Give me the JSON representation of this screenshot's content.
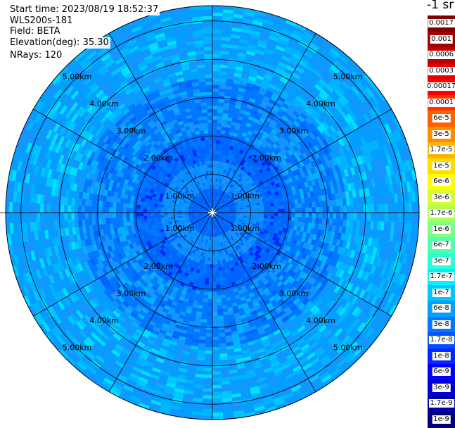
{
  "header": {
    "start_time_label": "Start time:",
    "start_time": "2023/08/19 18:52:37",
    "instrument": "WLS200s-181",
    "field_label": "Field:",
    "field": "BETA",
    "elevation_label": "Elevation(deg):",
    "elevation": "35.30",
    "nrays_label": "NRays:",
    "nrays": "120"
  },
  "colorbar": {
    "unit_text": "-1 sr",
    "ticks": [
      "0.0017",
      "0.001",
      "0.0006",
      "0.0003",
      "0.00017",
      "0.0001",
      "6e-5",
      "3e-5",
      "1.7e-5",
      "1e-5",
      "6e-6",
      "3e-6",
      "1.7e-6",
      "1e-6",
      "6e-7",
      "3e-7",
      "1.7e-7",
      "1e-7",
      "6e-8",
      "3e-8",
      "1.7e-8",
      "1e-8",
      "6e-9",
      "3e-9",
      "1.7e-9",
      "1e-9"
    ],
    "colors": [
      "#800000",
      "#a00000",
      "#c00000",
      "#e00000",
      "#ff0000",
      "#ff3000",
      "#ff6000",
      "#ff8c00",
      "#ffb400",
      "#ffdc00",
      "#ffff00",
      "#d4ff2a",
      "#a8ff56",
      "#7cff82",
      "#50ffae",
      "#28ffd4",
      "#00f0ff",
      "#00c8ff",
      "#00a0ff",
      "#0078ff",
      "#0050ff",
      "#0028ff",
      "#0000ff",
      "#0000d4",
      "#0000aa",
      "#000080"
    ]
  },
  "chart_data": {
    "type": "heatmap",
    "projection": "polar-ppi",
    "field": "BETA",
    "nrays": 120,
    "range_unit": "km",
    "range_max_km": 5.4,
    "range_rings_km": [
      1,
      2,
      3,
      4,
      5
    ],
    "ring_labels": [
      "1.00km",
      "2.00km",
      "3.00km",
      "4.00km",
      "5.00km"
    ],
    "radial_lines_deg": [
      0,
      30,
      60,
      90,
      120,
      150,
      180,
      210,
      240,
      270,
      300,
      330
    ],
    "color_scale": "log",
    "value_range": [
      1e-09,
      0.0017
    ],
    "value_distribution_by_range": [
      {
        "range_km": [
          0.0,
          0.6
        ],
        "typical": "1.7e-8",
        "class": "blue"
      },
      {
        "range_km": [
          0.6,
          1.3
        ],
        "typical": "3e-8",
        "class": "light-blue"
      },
      {
        "range_km": [
          1.3,
          2.0
        ],
        "typical": "1.7e-8",
        "class": "blue"
      },
      {
        "range_km": [
          2.0,
          3.5
        ],
        "typical": "3e-8",
        "class": "light-blue with cyan patches"
      },
      {
        "range_km": [
          3.5,
          5.4
        ],
        "typical": "6e-8",
        "class": "light-blue to cyan"
      }
    ]
  }
}
